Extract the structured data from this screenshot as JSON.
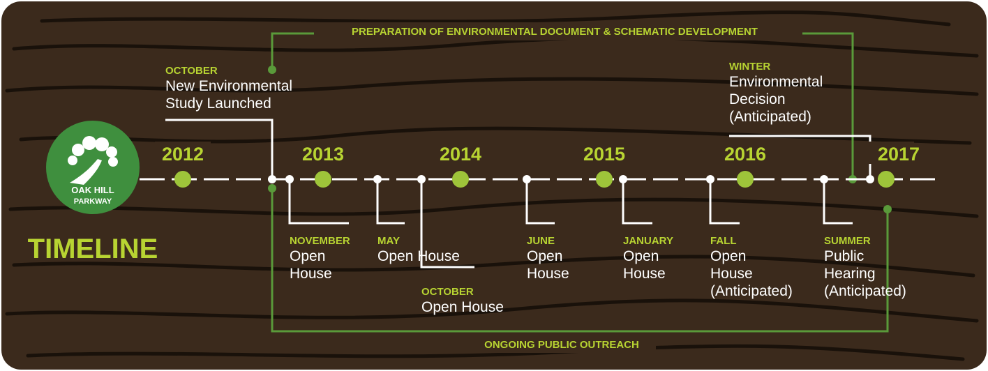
{
  "logo": {
    "line1": "OAK HILL",
    "line2": "PARKWAY"
  },
  "title": "TIMELINE",
  "brackets": {
    "top": "PREPARATION OF ENVIRONMENTAL DOCUMENT & SCHEMATIC DEVELOPMENT",
    "bottom": "ONGOING PUBLIC OUTREACH"
  },
  "years": [
    "2012",
    "2013",
    "2014",
    "2015",
    "2016",
    "2017"
  ],
  "events": [
    {
      "month": "OCTOBER",
      "lines": [
        "New Environmental",
        "Study Launched"
      ]
    },
    {
      "month": "NOVEMBER",
      "lines": [
        "Open",
        "House"
      ]
    },
    {
      "month": "MAY",
      "lines": [
        "Open House"
      ]
    },
    {
      "month": "OCTOBER",
      "lines": [
        "Open House"
      ]
    },
    {
      "month": "JUNE",
      "lines": [
        "Open",
        "House"
      ]
    },
    {
      "month": "JANUARY",
      "lines": [
        "Open",
        "House"
      ]
    },
    {
      "month": "FALL",
      "lines": [
        "Open",
        "House",
        "(Anticipated)"
      ]
    },
    {
      "month": "SUMMER",
      "lines": [
        "Public",
        "Hearing",
        "(Anticipated)"
      ]
    },
    {
      "month": "WINTER",
      "lines": [
        "Environmental",
        "Decision",
        "(Anticipated)"
      ]
    }
  ]
}
